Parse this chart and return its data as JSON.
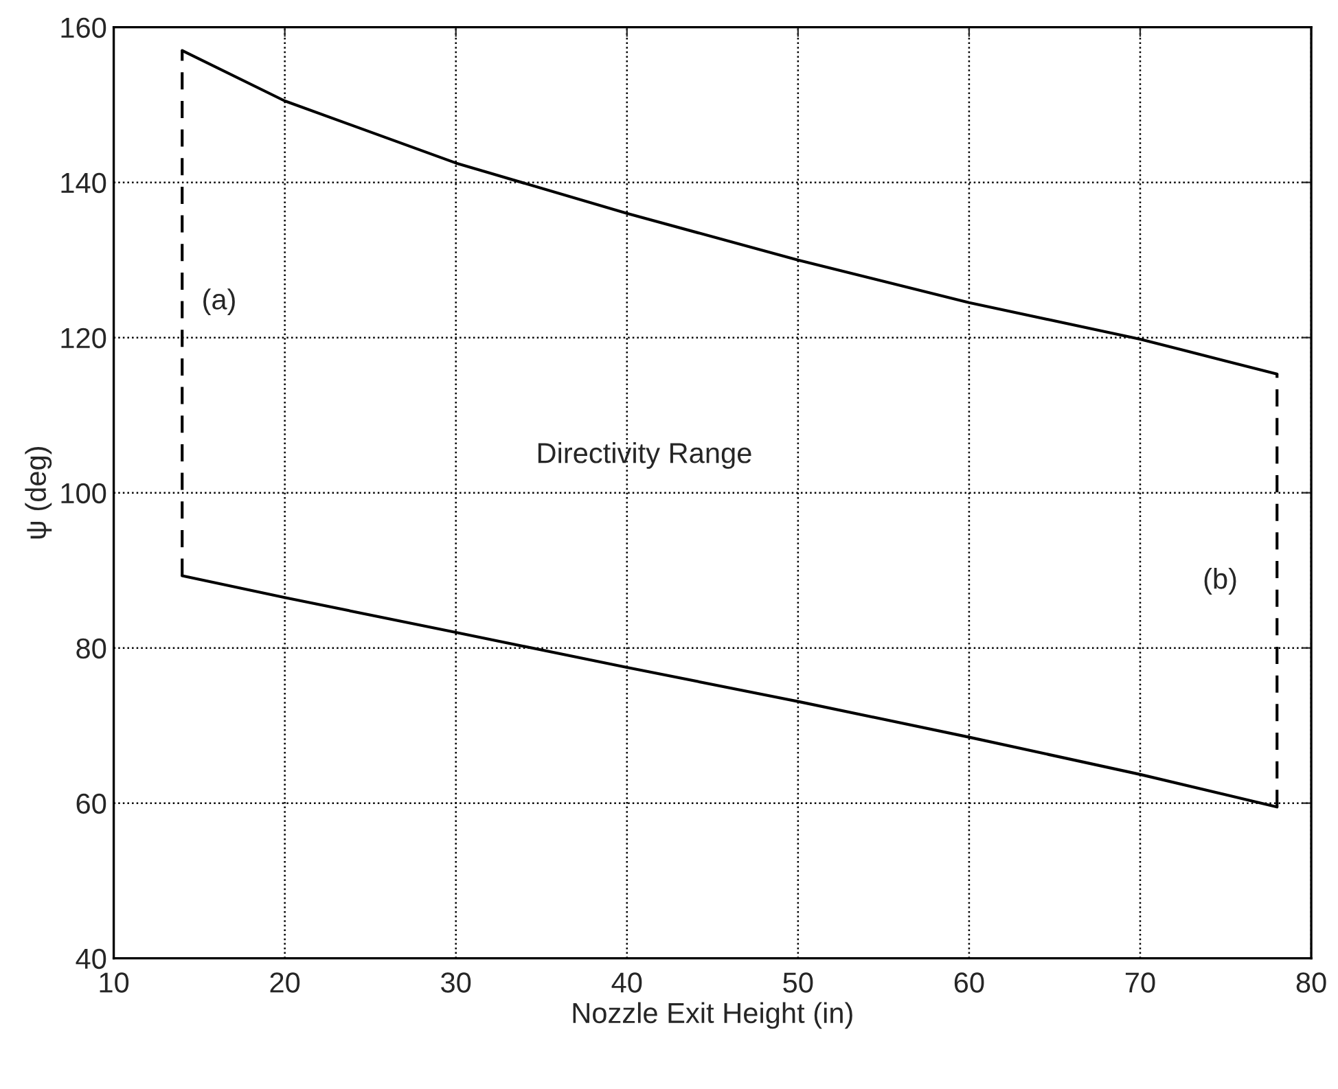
{
  "chart_data": {
    "type": "line",
    "xlabel": "Nozzle Exit Height (in)",
    "ylabel": "ψ (deg)",
    "xlim": [
      10,
      80
    ],
    "ylim": [
      40,
      160
    ],
    "xticks": [
      10,
      20,
      30,
      40,
      50,
      60,
      70,
      80
    ],
    "yticks": [
      40,
      60,
      80,
      100,
      120,
      140,
      160
    ],
    "grid": true,
    "line_style": "solid",
    "series": [
      {
        "color": "#000000",
        "x": [
          14,
          20,
          30,
          40,
          50,
          60,
          70,
          78
        ],
        "values": [
          157,
          150.5,
          142.5,
          136,
          130,
          124.5,
          119.8,
          115.3
        ]
      },
      {
        "color": "#000000",
        "x": [
          14,
          20,
          30,
          40,
          50,
          60,
          70,
          78
        ],
        "values": [
          89.3,
          86.5,
          82,
          77.5,
          73.1,
          68.5,
          63.7,
          59.5
        ]
      },
      {
        "color": "#000000",
        "line_style": "dashed",
        "x": [
          14,
          14
        ],
        "values": [
          89.3,
          157
        ]
      },
      {
        "color": "#000000",
        "line_style": "dashed",
        "x": [
          78,
          78
        ],
        "values": [
          59.5,
          115.3
        ]
      }
    ],
    "annotations": [
      "(a)",
      "Directivity Range",
      "(b)"
    ]
  }
}
